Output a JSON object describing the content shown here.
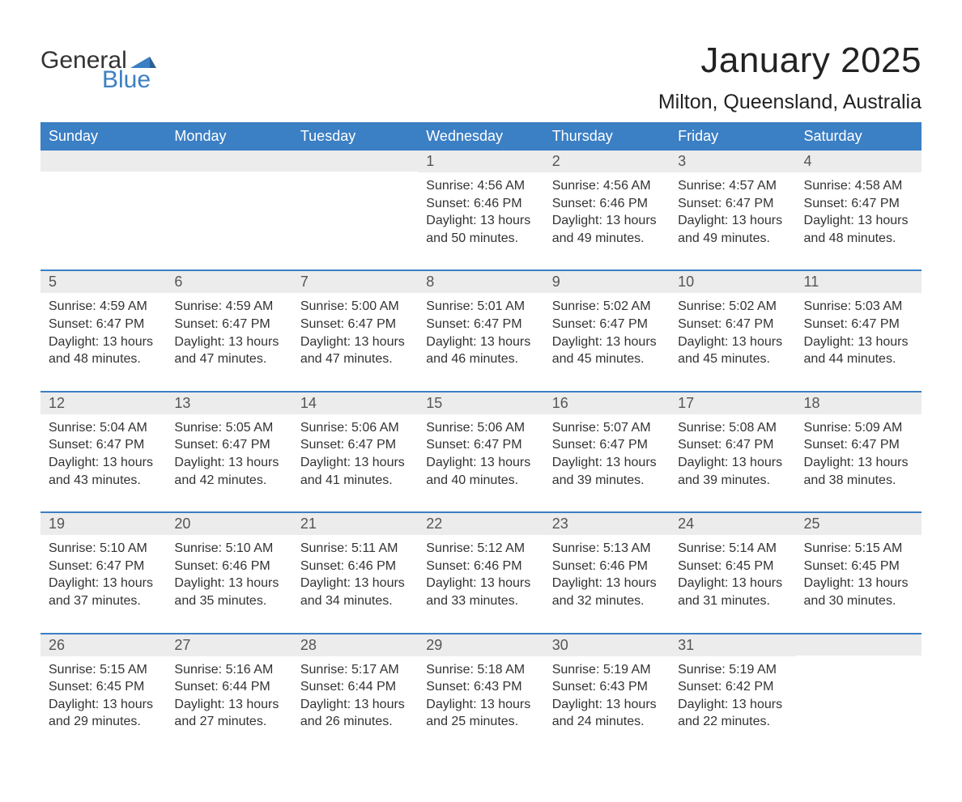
{
  "logo": {
    "word1": "General",
    "word2": "Blue",
    "flag_color": "#3b7fc4",
    "text_color_blue": "#3b7fc4",
    "text_color_dark": "#333333"
  },
  "title": "January 2025",
  "location": "Milton, Queensland, Australia",
  "colors": {
    "header_bg": "#3b7fc4",
    "header_text": "#ffffff",
    "daynum_bg": "#ececec",
    "daynum_text": "#555555",
    "body_text": "#333333",
    "rule": "#3b7fc4",
    "page_bg": "#ffffff"
  },
  "day_headers": [
    "Sunday",
    "Monday",
    "Tuesday",
    "Wednesday",
    "Thursday",
    "Friday",
    "Saturday"
  ],
  "weeks": [
    [
      {
        "n": "",
        "sunrise": "",
        "sunset": "",
        "daylight": ""
      },
      {
        "n": "",
        "sunrise": "",
        "sunset": "",
        "daylight": ""
      },
      {
        "n": "",
        "sunrise": "",
        "sunset": "",
        "daylight": ""
      },
      {
        "n": "1",
        "sunrise": "Sunrise: 4:56 AM",
        "sunset": "Sunset: 6:46 PM",
        "daylight": "Daylight: 13 hours and 50 minutes."
      },
      {
        "n": "2",
        "sunrise": "Sunrise: 4:56 AM",
        "sunset": "Sunset: 6:46 PM",
        "daylight": "Daylight: 13 hours and 49 minutes."
      },
      {
        "n": "3",
        "sunrise": "Sunrise: 4:57 AM",
        "sunset": "Sunset: 6:47 PM",
        "daylight": "Daylight: 13 hours and 49 minutes."
      },
      {
        "n": "4",
        "sunrise": "Sunrise: 4:58 AM",
        "sunset": "Sunset: 6:47 PM",
        "daylight": "Daylight: 13 hours and 48 minutes."
      }
    ],
    [
      {
        "n": "5",
        "sunrise": "Sunrise: 4:59 AM",
        "sunset": "Sunset: 6:47 PM",
        "daylight": "Daylight: 13 hours and 48 minutes."
      },
      {
        "n": "6",
        "sunrise": "Sunrise: 4:59 AM",
        "sunset": "Sunset: 6:47 PM",
        "daylight": "Daylight: 13 hours and 47 minutes."
      },
      {
        "n": "7",
        "sunrise": "Sunrise: 5:00 AM",
        "sunset": "Sunset: 6:47 PM",
        "daylight": "Daylight: 13 hours and 47 minutes."
      },
      {
        "n": "8",
        "sunrise": "Sunrise: 5:01 AM",
        "sunset": "Sunset: 6:47 PM",
        "daylight": "Daylight: 13 hours and 46 minutes."
      },
      {
        "n": "9",
        "sunrise": "Sunrise: 5:02 AM",
        "sunset": "Sunset: 6:47 PM",
        "daylight": "Daylight: 13 hours and 45 minutes."
      },
      {
        "n": "10",
        "sunrise": "Sunrise: 5:02 AM",
        "sunset": "Sunset: 6:47 PM",
        "daylight": "Daylight: 13 hours and 45 minutes."
      },
      {
        "n": "11",
        "sunrise": "Sunrise: 5:03 AM",
        "sunset": "Sunset: 6:47 PM",
        "daylight": "Daylight: 13 hours and 44 minutes."
      }
    ],
    [
      {
        "n": "12",
        "sunrise": "Sunrise: 5:04 AM",
        "sunset": "Sunset: 6:47 PM",
        "daylight": "Daylight: 13 hours and 43 minutes."
      },
      {
        "n": "13",
        "sunrise": "Sunrise: 5:05 AM",
        "sunset": "Sunset: 6:47 PM",
        "daylight": "Daylight: 13 hours and 42 minutes."
      },
      {
        "n": "14",
        "sunrise": "Sunrise: 5:06 AM",
        "sunset": "Sunset: 6:47 PM",
        "daylight": "Daylight: 13 hours and 41 minutes."
      },
      {
        "n": "15",
        "sunrise": "Sunrise: 5:06 AM",
        "sunset": "Sunset: 6:47 PM",
        "daylight": "Daylight: 13 hours and 40 minutes."
      },
      {
        "n": "16",
        "sunrise": "Sunrise: 5:07 AM",
        "sunset": "Sunset: 6:47 PM",
        "daylight": "Daylight: 13 hours and 39 minutes."
      },
      {
        "n": "17",
        "sunrise": "Sunrise: 5:08 AM",
        "sunset": "Sunset: 6:47 PM",
        "daylight": "Daylight: 13 hours and 39 minutes."
      },
      {
        "n": "18",
        "sunrise": "Sunrise: 5:09 AM",
        "sunset": "Sunset: 6:47 PM",
        "daylight": "Daylight: 13 hours and 38 minutes."
      }
    ],
    [
      {
        "n": "19",
        "sunrise": "Sunrise: 5:10 AM",
        "sunset": "Sunset: 6:47 PM",
        "daylight": "Daylight: 13 hours and 37 minutes."
      },
      {
        "n": "20",
        "sunrise": "Sunrise: 5:10 AM",
        "sunset": "Sunset: 6:46 PM",
        "daylight": "Daylight: 13 hours and 35 minutes."
      },
      {
        "n": "21",
        "sunrise": "Sunrise: 5:11 AM",
        "sunset": "Sunset: 6:46 PM",
        "daylight": "Daylight: 13 hours and 34 minutes."
      },
      {
        "n": "22",
        "sunrise": "Sunrise: 5:12 AM",
        "sunset": "Sunset: 6:46 PM",
        "daylight": "Daylight: 13 hours and 33 minutes."
      },
      {
        "n": "23",
        "sunrise": "Sunrise: 5:13 AM",
        "sunset": "Sunset: 6:46 PM",
        "daylight": "Daylight: 13 hours and 32 minutes."
      },
      {
        "n": "24",
        "sunrise": "Sunrise: 5:14 AM",
        "sunset": "Sunset: 6:45 PM",
        "daylight": "Daylight: 13 hours and 31 minutes."
      },
      {
        "n": "25",
        "sunrise": "Sunrise: 5:15 AM",
        "sunset": "Sunset: 6:45 PM",
        "daylight": "Daylight: 13 hours and 30 minutes."
      }
    ],
    [
      {
        "n": "26",
        "sunrise": "Sunrise: 5:15 AM",
        "sunset": "Sunset: 6:45 PM",
        "daylight": "Daylight: 13 hours and 29 minutes."
      },
      {
        "n": "27",
        "sunrise": "Sunrise: 5:16 AM",
        "sunset": "Sunset: 6:44 PM",
        "daylight": "Daylight: 13 hours and 27 minutes."
      },
      {
        "n": "28",
        "sunrise": "Sunrise: 5:17 AM",
        "sunset": "Sunset: 6:44 PM",
        "daylight": "Daylight: 13 hours and 26 minutes."
      },
      {
        "n": "29",
        "sunrise": "Sunrise: 5:18 AM",
        "sunset": "Sunset: 6:43 PM",
        "daylight": "Daylight: 13 hours and 25 minutes."
      },
      {
        "n": "30",
        "sunrise": "Sunrise: 5:19 AM",
        "sunset": "Sunset: 6:43 PM",
        "daylight": "Daylight: 13 hours and 24 minutes."
      },
      {
        "n": "31",
        "sunrise": "Sunrise: 5:19 AM",
        "sunset": "Sunset: 6:42 PM",
        "daylight": "Daylight: 13 hours and 22 minutes."
      },
      {
        "n": "",
        "sunrise": "",
        "sunset": "",
        "daylight": ""
      }
    ]
  ]
}
